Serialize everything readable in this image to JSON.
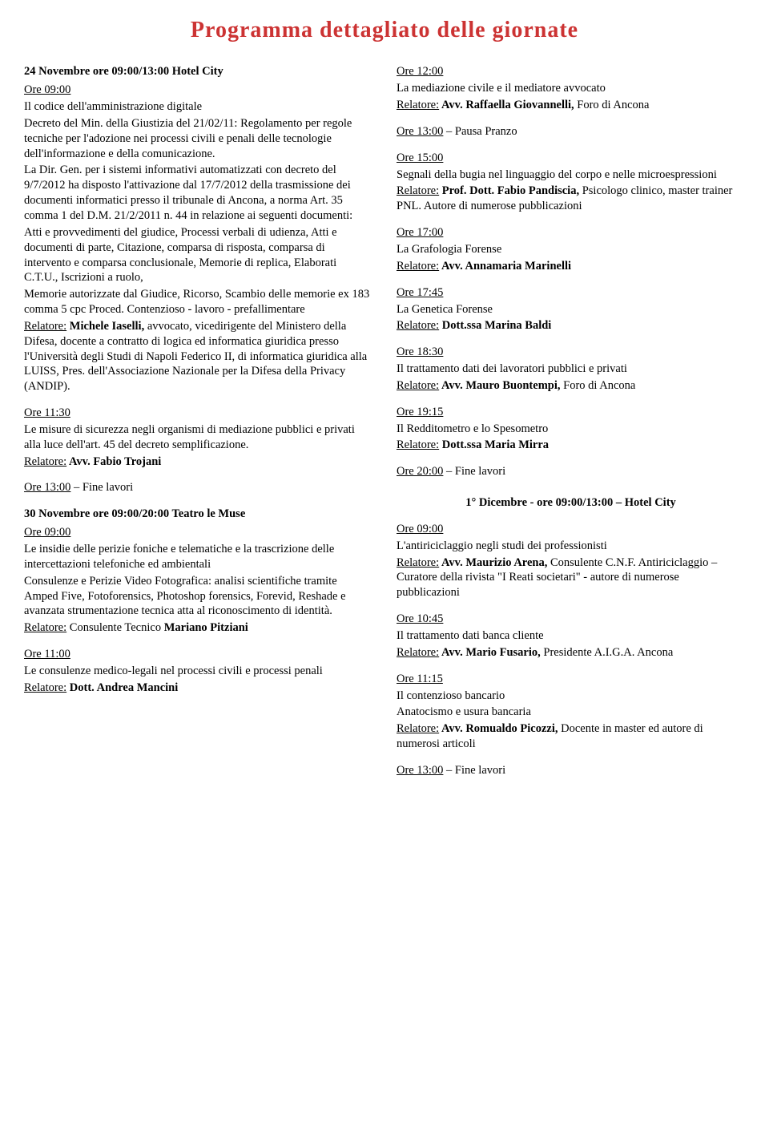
{
  "title": "Programma dettagliato delle giornate",
  "title_color": "#cc3333",
  "colL": {
    "s1_heading": "24 Novembre  ore 09:00/13:00 Hotel City",
    "b1_time": "Ore 09:00",
    "b1_l1": "Il codice dell'amministrazione digitale",
    "b1_l2": "Decreto del Min. della Giustizia del 21/02/11: Regolamento per regole tecniche per l'adozione nei processi civili e penali delle tecnologie dell'informazione e della comunicazione.",
    "b1_l3": "La Dir. Gen. per i sistemi informativi automatizzati con decreto del 9/7/2012 ha disposto l'attivazione dal 17/7/2012 della trasmissione dei documenti informatici presso il tribunale di Ancona, a norma Art. 35 comma 1 del D.M. 21/2/2011 n. 44 in relazione ai seguenti documenti:",
    "b1_l4": "Atti e provvedimenti del giudice, Processi verbali di udienza, Atti e documenti di parte, Citazione, comparsa di risposta, comparsa di intervento e comparsa conclusionale, Memorie di replica, Elaborati C.T.U., Iscrizioni a ruolo,",
    "b1_l5": "Memorie autorizzate dal Giudice, Ricorso, Scambio delle memorie ex 183 comma 5 cpc Proced. Contenzioso - lavoro - prefallimentare",
    "b1_rel_label": "Relatore:",
    "b1_rel_name": " Michele Iaselli,",
    "b1_rel_tail": " avvocato, vicedirigente del Ministero della Difesa, docente a contratto di logica ed informatica giuridica presso l'Università degli Studi di Napoli Federico II, di informatica giuridica alla LUISS, Pres. dell'Associazione Nazionale per la Difesa della Privacy (ANDIP).",
    "b2_time": "Ore 11:30",
    "b2_body": "Le misure di sicurezza negli organismi di mediazione pubblici e privati alla luce dell'art. 45 del decreto semplificazione.",
    "b2_rel_label": "Relatore:",
    "b2_rel_name": " Avv. Fabio Trojani",
    "b3_time": "Ore 13:00",
    "b3_tail": " – Fine lavori",
    "s2_heading": "30 Novembre  ore 09:00/20:00 Teatro le Muse",
    "b4_time": "Ore 09:00",
    "b4_l1": "Le insidie delle perizie foniche e telematiche e la trascrizione delle intercettazioni telefoniche ed ambientali",
    "b4_l2": "Consulenze e Perizie Video Fotografica: analisi scientifiche tramite Amped Five, Fotoforensics, Photoshop forensics, Forevid, Reshade e avanzata strumentazione tecnica atta al riconoscimento di identità.",
    "b4_rel_label": "Relatore:",
    "b4_rel_mid": " Consulente Tecnico ",
    "b4_rel_name": "Mariano Pitziani",
    "b5_time": "Ore 11:00",
    "b5_body": "Le consulenze medico-legali nel processi civili e processi penali",
    "b5_rel_label": "Relatore:",
    "b5_rel_name": " Dott. Andrea Mancini"
  },
  "colR": {
    "b1_time": "Ore 12:00",
    "b1_body": "La mediazione civile e il mediatore avvocato",
    "b1_rel_label": "Relatore:",
    "b1_rel_name": " Avv. Raffaella Giovannelli,",
    "b1_rel_tail": " Foro di Ancona",
    "b2_time": "Ore 13:00",
    "b2_tail": " – Pausa Pranzo",
    "b3_time": "Ore 15:00",
    "b3_body": "Segnali della bugia nel linguaggio del corpo e nelle microespressioni",
    "b3_rel_label": "Relatore:",
    "b3_rel_name": " Prof. Dott. Fabio Pandiscia,",
    "b3_rel_tail": " Psicologo clinico, master trainer PNL. Autore di numerose pubblicazioni",
    "b4_time": "Ore 17:00",
    "b4_body": "La Grafologia Forense",
    "b4_rel_label": "Relatore:",
    "b4_rel_name": " Avv. Annamaria Marinelli",
    "b5_time": "Ore 17:45",
    "b5_body": "La Genetica Forense",
    "b5_rel_label": "Relatore:",
    "b5_rel_name": " Dott.ssa Marina Baldi",
    "b6_time": "Ore 18:30",
    "b6_body": "Il trattamento dati dei lavoratori pubblici e privati",
    "b6_rel_label": "Relatore:",
    "b6_rel_name": " Avv. Mauro Buontempi,",
    "b6_rel_tail": " Foro di Ancona",
    "b7_time": "Ore 19:15",
    "b7_body": "Il Redditometro e lo Spesometro",
    "b7_rel_label": "Relatore:",
    "b7_rel_name": " Dott.ssa Maria Mirra",
    "b8_time": "Ore 20:00",
    "b8_tail": " – Fine lavori",
    "s2_heading": "1° Dicembre - ore 09:00/13:00 – Hotel City",
    "c1_time": "Ore 09:00",
    "c1_body": "L'antiriciclaggio negli studi dei professionisti",
    "c1_rel_label": "Relatore:",
    "c1_rel_name": " Avv. Maurizio Arena,",
    "c1_rel_tail1": " Consulente C.N.F. Antiriciclaggio – Curatore della rivista \"I Reati societari\" - autore di numerose pubblicazioni",
    "c2_time": "Ore 10:45",
    "c2_body": "Il trattamento dati banca cliente",
    "c2_rel_label": "Relatore:",
    "c2_rel_name": " Avv. Mario Fusario,",
    "c2_rel_tail": " Presidente A.I.G.A. Ancona",
    "c3_time": "Ore 11:15",
    "c3_l1": "Il contenzioso bancario",
    "c3_l2": "Anatocismo e usura bancaria",
    "c3_rel_label": "Relatore:",
    "c3_rel_name": " Avv. Romualdo Picozzi,",
    "c3_rel_tail": " Docente in master ed autore di numerosi articoli",
    "c4_time": "Ore 13:00",
    "c4_tail": " – Fine lavori"
  }
}
